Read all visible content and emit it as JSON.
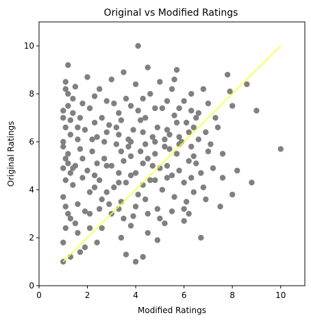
{
  "chart_data": {
    "type": "scatter",
    "title": "Original vs Modified Ratings",
    "xlabel": "Modified Ratings",
    "ylabel": "Original Ratings",
    "xlim": [
      0,
      11
    ],
    "ylim": [
      0,
      11
    ],
    "xticks": [
      "0",
      "2",
      "4",
      "6",
      "8",
      "10"
    ],
    "yticks": [
      "0",
      "2",
      "4",
      "6",
      "8",
      "10"
    ],
    "grid": false,
    "colors": {
      "points": "#808080",
      "line": "#ffff33",
      "axes": "#000000"
    },
    "series": [
      {
        "kind": "points",
        "points": [
          [
            1.0,
            1.0
          ],
          [
            1.3,
            1.2
          ],
          [
            4.0,
            1.0
          ],
          [
            4.3,
            1.2
          ],
          [
            3.6,
            1.3
          ],
          [
            3.4,
            2.0
          ],
          [
            1.7,
            1.4
          ],
          [
            1.9,
            1.6
          ],
          [
            2.4,
            1.8
          ],
          [
            6.7,
            2.0
          ],
          [
            4.1,
            10.0
          ],
          [
            1.2,
            9.2
          ],
          [
            10.0,
            5.7
          ],
          [
            9.0,
            7.3
          ],
          [
            8.8,
            4.3
          ],
          [
            8.6,
            8.4
          ],
          [
            8.0,
            7.5
          ],
          [
            8.0,
            3.8
          ],
          [
            8.2,
            4.8
          ],
          [
            7.8,
            8.8
          ],
          [
            7.9,
            8.1
          ],
          [
            7.6,
            5.5
          ],
          [
            7.4,
            6.6
          ],
          [
            7.6,
            4.5
          ],
          [
            7.5,
            3.3
          ],
          [
            7.0,
            7.6
          ],
          [
            6.9,
            6.4
          ],
          [
            6.5,
            5.1
          ],
          [
            6.8,
            4.1
          ],
          [
            6.2,
            3.0
          ],
          [
            6.0,
            3.2
          ],
          [
            5.7,
            9.0
          ],
          [
            5.6,
            8.6
          ],
          [
            6.3,
            8.0
          ],
          [
            6.6,
            7.2
          ],
          [
            5.2,
            2.6
          ],
          [
            4.5,
            2.2
          ],
          [
            4.9,
            1.9
          ],
          [
            3.8,
            2.5
          ],
          [
            3.3,
            3.2
          ],
          [
            2.6,
            2.4
          ],
          [
            2.1,
            3.0
          ],
          [
            1.1,
            8.5
          ],
          [
            1.2,
            8.0
          ],
          [
            1.0,
            7.3
          ],
          [
            1.1,
            6.6
          ],
          [
            1.0,
            5.8
          ],
          [
            1.2,
            5.1
          ],
          [
            1.1,
            4.4
          ],
          [
            1.0,
            3.7
          ],
          [
            1.2,
            3.0
          ],
          [
            1.1,
            2.4
          ],
          [
            1.0,
            1.8
          ],
          [
            1.5,
            8.3
          ],
          [
            1.4,
            7.2
          ],
          [
            1.6,
            6.1
          ],
          [
            1.5,
            5.0
          ],
          [
            1.4,
            4.2
          ],
          [
            1.6,
            3.4
          ],
          [
            1.5,
            2.6
          ],
          [
            2.0,
            8.7
          ],
          [
            2.1,
            7.4
          ],
          [
            1.9,
            6.5
          ],
          [
            2.2,
            5.6
          ],
          [
            2.0,
            4.8
          ],
          [
            2.1,
            3.9
          ],
          [
            1.9,
            3.1
          ],
          [
            2.5,
            8.2
          ],
          [
            2.6,
            7.0
          ],
          [
            2.4,
            6.2
          ],
          [
            2.7,
            5.3
          ],
          [
            2.5,
            4.4
          ],
          [
            2.6,
            3.6
          ],
          [
            3.0,
            8.6
          ],
          [
            3.1,
            7.6
          ],
          [
            2.9,
            6.7
          ],
          [
            3.2,
            5.9
          ],
          [
            3.0,
            5.0
          ],
          [
            3.1,
            4.1
          ],
          [
            2.9,
            3.4
          ],
          [
            3.5,
            8.9
          ],
          [
            3.6,
            7.8
          ],
          [
            3.4,
            6.9
          ],
          [
            3.7,
            6.1
          ],
          [
            3.5,
            5.2
          ],
          [
            3.6,
            4.3
          ],
          [
            3.4,
            3.5
          ],
          [
            4.0,
            8.4
          ],
          [
            4.1,
            7.3
          ],
          [
            3.9,
            6.5
          ],
          [
            4.2,
            5.6
          ],
          [
            4.0,
            4.7
          ],
          [
            4.1,
            3.8
          ],
          [
            3.9,
            2.9
          ],
          [
            4.5,
            9.1
          ],
          [
            4.6,
            8.0
          ],
          [
            4.4,
            7.0
          ],
          [
            4.7,
            6.2
          ],
          [
            4.5,
            5.3
          ],
          [
            4.6,
            4.4
          ],
          [
            4.4,
            3.6
          ],
          [
            5.0,
            8.5
          ],
          [
            5.1,
            7.4
          ],
          [
            4.9,
            6.6
          ],
          [
            5.2,
            5.8
          ],
          [
            5.0,
            4.9
          ],
          [
            5.1,
            4.0
          ],
          [
            4.9,
            3.2
          ],
          [
            5.5,
            8.2
          ],
          [
            5.6,
            7.1
          ],
          [
            5.4,
            6.3
          ],
          [
            5.7,
            5.5
          ],
          [
            5.5,
            4.6
          ],
          [
            5.6,
            3.7
          ],
          [
            6.0,
            7.7
          ],
          [
            6.1,
            6.8
          ],
          [
            5.9,
            6.0
          ],
          [
            6.2,
            5.2
          ],
          [
            6.0,
            4.3
          ],
          [
            6.1,
            3.5
          ],
          [
            6.5,
            7.0
          ],
          [
            6.6,
            6.1
          ],
          [
            6.4,
            5.4
          ],
          [
            6.7,
            4.7
          ],
          [
            1.3,
            6.9
          ],
          [
            1.7,
            5.7
          ],
          [
            2.3,
            6.8
          ],
          [
            2.8,
            6.4
          ],
          [
            3.3,
            6.3
          ],
          [
            3.8,
            6.0
          ],
          [
            4.3,
            6.4
          ],
          [
            4.8,
            6.0
          ],
          [
            5.3,
            6.5
          ],
          [
            5.8,
            6.2
          ],
          [
            1.8,
            5.3
          ],
          [
            2.3,
            4.6
          ],
          [
            2.8,
            5.0
          ],
          [
            3.3,
            4.7
          ],
          [
            3.8,
            5.4
          ],
          [
            4.3,
            5.1
          ],
          [
            4.8,
            5.5
          ],
          [
            5.3,
            5.0
          ],
          [
            5.8,
            5.9
          ],
          [
            6.3,
            5.8
          ],
          [
            1.3,
            4.7
          ],
          [
            1.8,
            4.5
          ],
          [
            2.3,
            4.1
          ],
          [
            2.8,
            3.9
          ],
          [
            3.3,
            4.3
          ],
          [
            3.8,
            4.6
          ],
          [
            4.3,
            4.2
          ],
          [
            4.8,
            4.4
          ],
          [
            5.3,
            4.5
          ],
          [
            5.8,
            4.8
          ],
          [
            6.3,
            4.5
          ],
          [
            1.4,
            7.8
          ],
          [
            1.8,
            7.6
          ],
          [
            2.3,
            7.9
          ],
          [
            2.8,
            7.7
          ],
          [
            3.3,
            7.2
          ],
          [
            3.8,
            7.5
          ],
          [
            4.3,
            7.8
          ],
          [
            4.8,
            7.4
          ],
          [
            5.3,
            7.7
          ],
          [
            5.8,
            7.4
          ],
          [
            6.3,
            7.3
          ],
          [
            1.2,
            5.5
          ],
          [
            1.3,
            6.3
          ],
          [
            1.4,
            4.9
          ],
          [
            1.6,
            6.6
          ],
          [
            1.7,
            7.0
          ],
          [
            2.2,
            6.1
          ],
          [
            2.4,
            5.1
          ],
          [
            2.7,
            6.0
          ],
          [
            3.2,
            6.6
          ],
          [
            3.4,
            5.6
          ],
          [
            3.7,
            5.8
          ],
          [
            4.2,
            6.9
          ],
          [
            4.4,
            5.9
          ],
          [
            4.7,
            5.0
          ],
          [
            5.2,
            6.1
          ],
          [
            5.4,
            5.7
          ],
          [
            5.7,
            6.8
          ],
          [
            6.2,
            6.4
          ],
          [
            6.4,
            6.6
          ],
          [
            1.1,
            3.3
          ],
          [
            1.3,
            2.8
          ],
          [
            1.6,
            2.2
          ],
          [
            2.1,
            2.4
          ],
          [
            2.5,
            3.2
          ],
          [
            3.0,
            3.0
          ],
          [
            3.5,
            2.8
          ],
          [
            4.0,
            3.3
          ],
          [
            4.5,
            3.0
          ],
          [
            5.0,
            2.8
          ],
          [
            5.5,
            3.1
          ],
          [
            6.0,
            2.7
          ],
          [
            6.4,
            3.9
          ],
          [
            7.2,
            4.9
          ],
          [
            7.0,
            5.6
          ],
          [
            6.9,
            3.6
          ],
          [
            7.3,
            7.0
          ],
          [
            6.8,
            8.2
          ],
          [
            7.1,
            5.9
          ],
          [
            1.0,
            6.0
          ],
          [
            1.0,
            4.9
          ],
          [
            1.1,
            5.3
          ],
          [
            1.0,
            7.0
          ],
          [
            1.1,
            8.2
          ],
          [
            1.2,
            7.5
          ]
        ]
      },
      {
        "kind": "line",
        "points": [
          [
            1,
            1
          ],
          [
            10,
            10
          ]
        ]
      }
    ]
  }
}
